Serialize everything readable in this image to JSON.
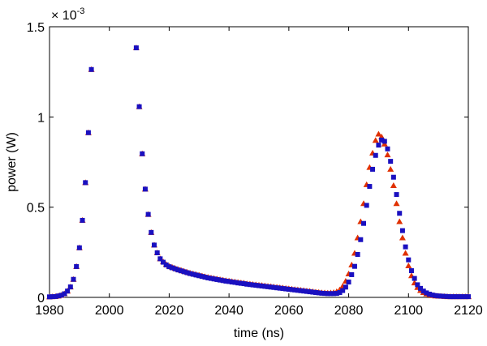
{
  "chart_data": {
    "type": "scatter",
    "title": "",
    "xlabel": "time (ns)",
    "ylabel": "power (W)",
    "y_multiplier": {
      "base": "× 10",
      "exponent": "-3"
    },
    "xlim": [
      1980,
      2120
    ],
    "ylim": [
      0,
      1.5
    ],
    "xticks": [
      "1980",
      "2000",
      "2020",
      "2040",
      "2060",
      "2080",
      "2100",
      "2120"
    ],
    "yticks": [
      "0",
      "0.5",
      "1",
      "1.5"
    ],
    "grid": false,
    "legend": "none",
    "x": [
      1980,
      1981,
      1982,
      1983,
      1984,
      1985,
      1986,
      1987,
      1988,
      1989,
      1990,
      1991,
      1992,
      1993,
      1994,
      2009,
      2010,
      2011,
      2012,
      2013,
      2014,
      2015,
      2016,
      2017,
      2018,
      2019,
      2020,
      2021,
      2022,
      2023,
      2024,
      2025,
      2026,
      2027,
      2028,
      2029,
      2030,
      2031,
      2032,
      2033,
      2034,
      2035,
      2036,
      2037,
      2038,
      2039,
      2040,
      2041,
      2042,
      2043,
      2044,
      2045,
      2046,
      2047,
      2048,
      2049,
      2050,
      2051,
      2052,
      2053,
      2054,
      2055,
      2056,
      2057,
      2058,
      2059,
      2060,
      2061,
      2062,
      2063,
      2064,
      2065,
      2066,
      2067,
      2068,
      2069,
      2070,
      2071,
      2072,
      2073,
      2074,
      2075,
      2076,
      2077,
      2078,
      2079,
      2080,
      2081,
      2082,
      2083,
      2084,
      2085,
      2086,
      2087,
      2088,
      2089,
      2090,
      2091,
      2092,
      2093,
      2094,
      2095,
      2096,
      2097,
      2098,
      2099,
      2100,
      2101,
      2102,
      2103,
      2104,
      2105,
      2106,
      2107,
      2108,
      2109,
      2110,
      2111,
      2112,
      2113,
      2114,
      2115,
      2116,
      2117,
      2118,
      2119,
      2120
    ],
    "series": [
      {
        "name": "red triangles",
        "marker": "triangle",
        "color": "#e03000",
        "values": [
          0.003,
          0.004,
          0.005,
          0.008,
          0.012,
          0.02,
          0.035,
          0.058,
          0.1,
          0.171,
          0.275,
          0.427,
          0.636,
          0.913,
          1.263,
          1.383,
          1.057,
          0.796,
          0.6,
          0.46,
          0.36,
          0.29,
          0.247,
          0.214,
          0.197,
          0.183,
          0.173,
          0.167,
          0.161,
          0.155,
          0.15,
          0.145,
          0.14,
          0.135,
          0.131,
          0.127,
          0.123,
          0.119,
          0.115,
          0.111,
          0.108,
          0.105,
          0.102,
          0.099,
          0.096,
          0.093,
          0.091,
          0.088,
          0.086,
          0.083,
          0.081,
          0.079,
          0.076,
          0.074,
          0.072,
          0.07,
          0.068,
          0.066,
          0.064,
          0.062,
          0.06,
          0.058,
          0.056,
          0.054,
          0.052,
          0.05,
          0.048,
          0.046,
          0.044,
          0.042,
          0.04,
          0.038,
          0.036,
          0.034,
          0.032,
          0.03,
          0.028,
          0.026,
          0.025,
          0.024,
          0.025,
          0.027,
          0.032,
          0.042,
          0.062,
          0.09,
          0.13,
          0.18,
          0.245,
          0.33,
          0.42,
          0.52,
          0.625,
          0.72,
          0.8,
          0.87,
          0.905,
          0.89,
          0.85,
          0.79,
          0.71,
          0.62,
          0.52,
          0.42,
          0.33,
          0.245,
          0.175,
          0.12,
          0.08,
          0.055,
          0.038,
          0.027,
          0.019,
          0.014,
          0.01,
          0.008,
          0.007,
          0.006,
          0.005,
          0.004,
          0.004,
          0.004,
          0.004,
          0.004,
          0.004,
          0.004,
          0.004
        ]
      },
      {
        "name": "blue squares",
        "marker": "square",
        "color": "#1a10c0",
        "values": [
          0.003,
          0.004,
          0.005,
          0.008,
          0.012,
          0.02,
          0.035,
          0.058,
          0.1,
          0.171,
          0.275,
          0.427,
          0.636,
          0.913,
          1.263,
          1.383,
          1.057,
          0.796,
          0.6,
          0.46,
          0.36,
          0.29,
          0.247,
          0.214,
          0.195,
          0.18,
          0.17,
          0.164,
          0.158,
          0.152,
          0.147,
          0.142,
          0.137,
          0.132,
          0.128,
          0.124,
          0.12,
          0.116,
          0.112,
          0.108,
          0.105,
          0.102,
          0.099,
          0.096,
          0.093,
          0.09,
          0.088,
          0.085,
          0.083,
          0.08,
          0.078,
          0.076,
          0.073,
          0.071,
          0.069,
          0.067,
          0.065,
          0.063,
          0.061,
          0.059,
          0.057,
          0.055,
          0.053,
          0.051,
          0.049,
          0.047,
          0.045,
          0.043,
          0.041,
          0.039,
          0.037,
          0.035,
          0.033,
          0.031,
          0.029,
          0.027,
          0.025,
          0.023,
          0.022,
          0.021,
          0.021,
          0.021,
          0.022,
          0.027,
          0.038,
          0.057,
          0.085,
          0.126,
          0.172,
          0.238,
          0.32,
          0.41,
          0.51,
          0.615,
          0.71,
          0.787,
          0.844,
          0.872,
          0.865,
          0.823,
          0.754,
          0.666,
          0.57,
          0.466,
          0.37,
          0.28,
          0.208,
          0.148,
          0.105,
          0.07,
          0.05,
          0.035,
          0.025,
          0.018,
          0.013,
          0.01,
          0.008,
          0.007,
          0.006,
          0.005,
          0.004,
          0.004,
          0.004,
          0.004,
          0.004,
          0.004,
          0.004
        ]
      }
    ]
  }
}
